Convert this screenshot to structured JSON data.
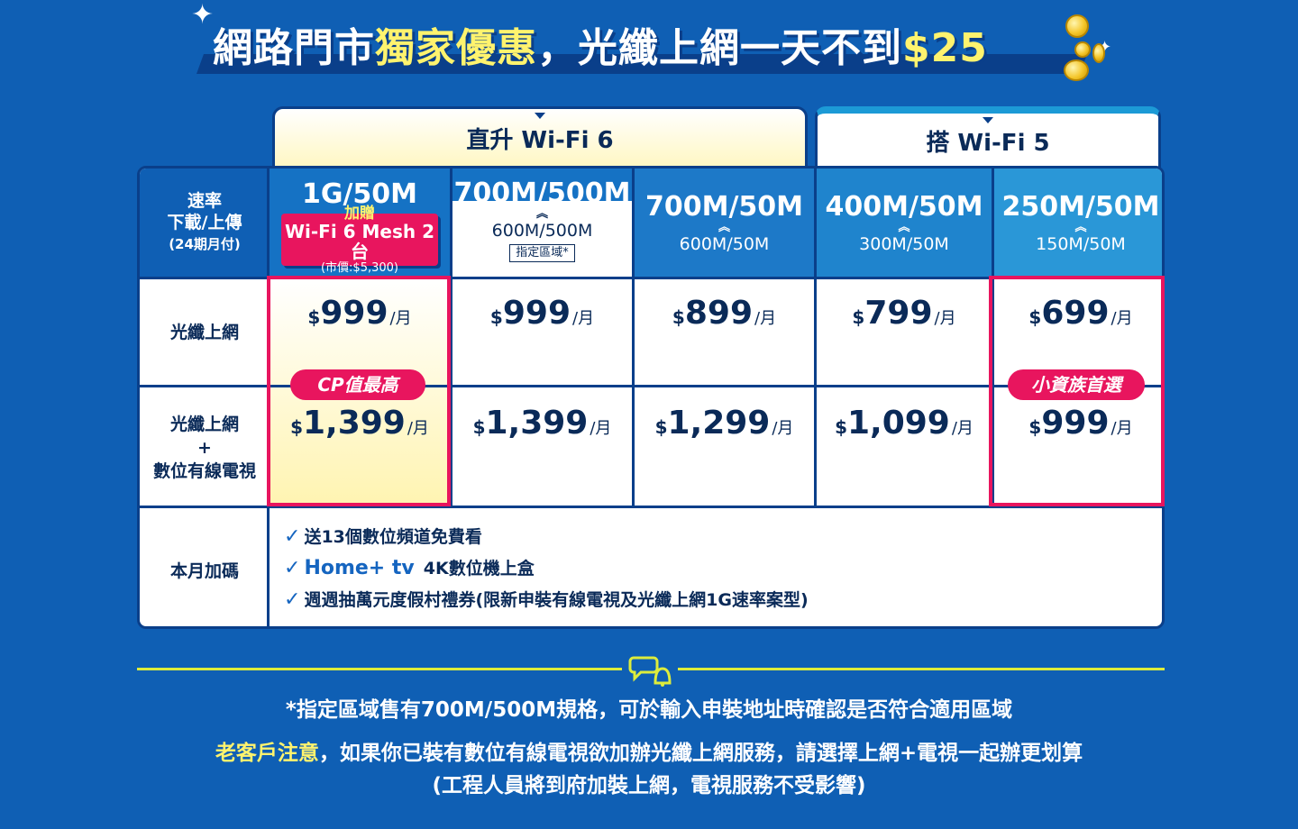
{
  "headline": {
    "part1": "網路門市",
    "part2": "獨家優惠",
    "part3": "，光纖上網一天不到",
    "price": "$25"
  },
  "tabs": {
    "wifi6": "直升 Wi-Fi 6",
    "wifi5": "搭 Wi-Fi 5"
  },
  "header_label": {
    "line1": "速率",
    "line2": "下載/上傳",
    "line3": "(24期月付)"
  },
  "plans": [
    {
      "speed": "1G/50M",
      "gift_line1": "加贈",
      "gift_line2": "Wi-Fi 6 Mesh 2台",
      "gift_line3": "(市價:$5,300)"
    },
    {
      "speed": "700M/500M",
      "sub": "600M/500M",
      "tag": "指定區域*"
    },
    {
      "speed": "700M/50M",
      "sub": "600M/50M"
    },
    {
      "speed": "400M/50M",
      "sub": "300M/50M"
    },
    {
      "speed": "250M/50M",
      "sub": "150M/50M"
    }
  ],
  "rows": {
    "fiber": {
      "label": "光纖上網",
      "currency": "$",
      "unit": "/月",
      "prices": [
        "999",
        "999",
        "899",
        "799",
        "699"
      ]
    },
    "fiber_tv": {
      "label_line1": "光纖上網",
      "label_line2": "+",
      "label_line3": "數位有線電視",
      "currency": "$",
      "unit": "/月",
      "prices": [
        "1,399",
        "1,399",
        "1,299",
        "1,099",
        "999"
      ]
    },
    "bonus": {
      "label": "本月加碼",
      "item1": "送13個數位頻道免費看",
      "item2_brand": "Home+ tv",
      "item2": "4K數位機上盒",
      "item3": "週週抽萬元度假村禮券(限新申裝有線電視及光纖上網1G速率案型)"
    }
  },
  "badges": {
    "cp": "CP值最高",
    "small": "小資族首選"
  },
  "notes": {
    "line1": "*指定區域售有700M/500M規格，可於輸入申裝地址時確認是否符合適用區域",
    "line2_highlight": "老客戶注意",
    "line2": "，如果你已裝有數位有線電視欲加辦光纖上網服務，請選擇上網+電視一起辦更划算",
    "line3": "(工程人員將到府加裝上網，電視服務不受影響)"
  },
  "colors": {
    "background": "#0f5fb4",
    "accent_pink": "#e8155e",
    "accent_yellow": "#fff36e",
    "navy": "#0a3f8a"
  },
  "icons": [
    "sparkle-icon",
    "coin-icon",
    "check-icon",
    "chat-bell-icon",
    "chevron-up-icon"
  ]
}
